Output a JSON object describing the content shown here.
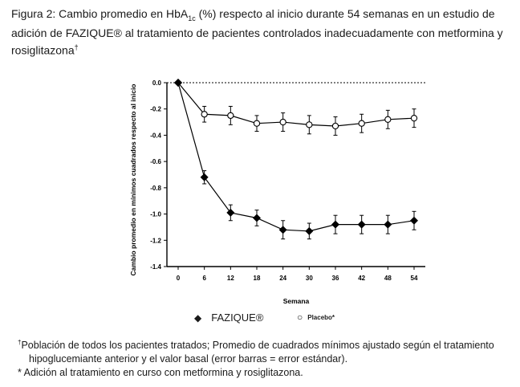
{
  "figure": {
    "caption_prefix": "Figura 2: Cambio promedio en HbA",
    "caption_sub": "1c",
    "caption_rest": " (%) respecto al inicio durante 54 semanas en un estudio de adición de FAZIQUE® al tratamiento de pacientes controlados inadecuadamente con metformina y rosiglitazona",
    "caption_mark": "†"
  },
  "footnotes": {
    "line1_mark": "†",
    "line1": "Población de todos los pacientes tratados; Promedio de cuadrados mínimos ajustado según el tratamiento",
    "line1_cont": "hipoglucemiante anterior y el valor basal (error barras = error estándar).",
    "line2": "* Adición al tratamiento en curso con metformina y rosiglitazona."
  },
  "legend": {
    "fazique_marker": "◆",
    "fazique_label": "FAZIQUE®",
    "placebo_marker": "○",
    "placebo_label": "Placebo*"
  },
  "chart_data": {
    "type": "line",
    "xlabel": "Semana",
    "ylabel": "Cambio promedio en mínimos cuadrados respecto al inicio",
    "x": [
      0,
      6,
      12,
      18,
      24,
      30,
      36,
      42,
      48,
      54
    ],
    "xlim": [
      0,
      54
    ],
    "ylim": [
      -1.4,
      0.0
    ],
    "yticks": [
      0.0,
      -0.2,
      -0.4,
      -0.6,
      -0.8,
      -1.0,
      -1.2,
      -1.4
    ],
    "ytick_labels": [
      "0.0",
      "-0.2",
      "-0.4",
      "-0.6",
      "-0.8",
      "-1.0",
      "-1.2",
      "-1.4"
    ],
    "reference_line": 0.0,
    "series": [
      {
        "name": "Placebo*",
        "marker": "open-circle",
        "color": "#000000",
        "values": [
          0.0,
          -0.24,
          -0.25,
          -0.31,
          -0.3,
          -0.32,
          -0.33,
          -0.31,
          -0.28,
          -0.27
        ],
        "errors": [
          0.0,
          0.06,
          0.07,
          0.06,
          0.07,
          0.07,
          0.07,
          0.07,
          0.07,
          0.07
        ]
      },
      {
        "name": "FAZIQUE®",
        "marker": "filled-diamond",
        "color": "#000000",
        "values": [
          0.0,
          -0.72,
          -0.99,
          -1.03,
          -1.12,
          -1.13,
          -1.08,
          -1.08,
          -1.08,
          -1.05
        ],
        "errors": [
          0.0,
          0.05,
          0.06,
          0.06,
          0.07,
          0.06,
          0.07,
          0.07,
          0.07,
          0.07
        ]
      }
    ]
  }
}
